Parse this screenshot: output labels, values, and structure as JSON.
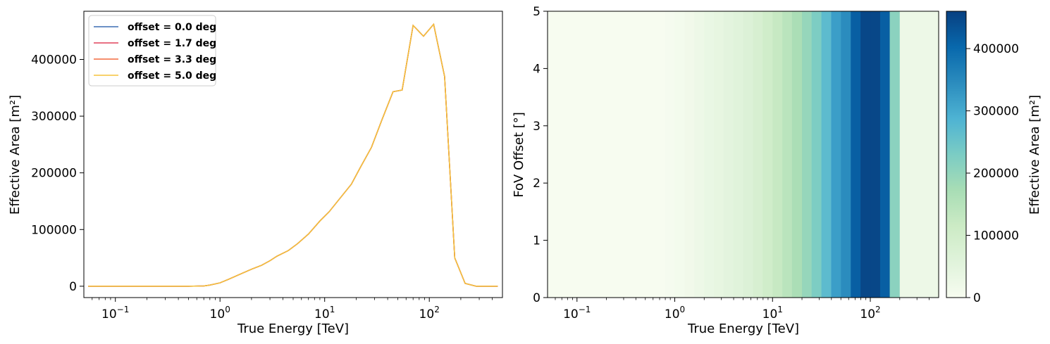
{
  "chart_data": [
    {
      "type": "line",
      "xlabel": "True Energy [TeV]",
      "ylabel": "Effective Area [m²]",
      "xscale": "log",
      "xlim": [
        0.05,
        500
      ],
      "ylim": [
        -20000,
        485000
      ],
      "x_ticks": [
        {
          "value": 0.1,
          "base": "10",
          "exp": "−1"
        },
        {
          "value": 1,
          "base": "10",
          "exp": "0"
        },
        {
          "value": 10,
          "base": "10",
          "exp": "1"
        },
        {
          "value": 100,
          "base": "10",
          "exp": "2"
        }
      ],
      "y_ticks": [
        {
          "value": 0,
          "label": "0"
        },
        {
          "value": 100000,
          "label": "100000"
        },
        {
          "value": 200000,
          "label": "200000"
        },
        {
          "value": 300000,
          "label": "300000"
        },
        {
          "value": 400000,
          "label": "400000"
        }
      ],
      "legend_position": "top-left",
      "x": [
        0.055,
        0.1,
        0.2,
        0.3,
        0.5,
        0.7,
        0.8,
        1.0,
        1.2,
        1.5,
        2.0,
        2.5,
        3.0,
        3.5,
        4.5,
        5.5,
        7.0,
        9.0,
        11,
        14,
        18,
        22,
        28,
        35,
        45,
        55,
        70,
        88,
        110,
        140,
        175,
        220,
        280,
        350,
        450
      ],
      "series": [
        {
          "name": "offset = 0.0 deg",
          "color": "#3b6db3",
          "values": [
            0,
            0,
            0,
            0,
            0,
            500,
            2000,
            6000,
            12000,
            20000,
            30000,
            37000,
            45000,
            53000,
            63000,
            75000,
            92000,
            115000,
            131000,
            155000,
            180000,
            210000,
            245000,
            292000,
            343000,
            346000,
            460000,
            441000,
            462000,
            370000,
            50000,
            5000,
            0,
            0,
            0
          ]
        },
        {
          "name": "offset = 1.7 deg",
          "color": "#e0425a",
          "values": [
            0,
            0,
            0,
            0,
            0,
            500,
            2000,
            6000,
            12000,
            20000,
            30000,
            37000,
            45000,
            53000,
            63000,
            75000,
            92000,
            115000,
            131000,
            155000,
            180000,
            210000,
            245000,
            292000,
            343000,
            346000,
            460000,
            441000,
            462000,
            370000,
            50000,
            5000,
            0,
            0,
            0
          ]
        },
        {
          "name": "offset = 3.3 deg",
          "color": "#f26a3e",
          "values": [
            0,
            0,
            0,
            0,
            0,
            500,
            2000,
            6000,
            12000,
            20000,
            30000,
            37000,
            45000,
            53000,
            63000,
            75000,
            92000,
            115000,
            131000,
            155000,
            180000,
            210000,
            245000,
            292000,
            343000,
            346000,
            460000,
            441000,
            462000,
            370000,
            50000,
            5000,
            0,
            0,
            0
          ]
        },
        {
          "name": "offset = 5.0 deg",
          "color": "#f5c33b",
          "values": [
            0,
            0,
            0,
            0,
            0,
            500,
            2000,
            6000,
            12000,
            20000,
            30000,
            37000,
            45000,
            53000,
            63000,
            75000,
            92000,
            115000,
            131000,
            155000,
            180000,
            210000,
            245000,
            292000,
            343000,
            346000,
            460000,
            441000,
            462000,
            370000,
            50000,
            5000,
            0,
            0,
            0
          ]
        }
      ]
    },
    {
      "type": "heatmap",
      "xlabel": "True Energy [TeV]",
      "ylabel": "FoV Offset [°]",
      "xscale": "log",
      "xlim": [
        0.05,
        500
      ],
      "ylim": [
        0,
        5
      ],
      "colormap": "GnBu",
      "colorbar_label": "Effective Area [m²]",
      "colorbar_range": [
        0,
        460000
      ],
      "x_ticks": [
        {
          "value": 0.1,
          "base": "10",
          "exp": "−1"
        },
        {
          "value": 1,
          "base": "10",
          "exp": "0"
        },
        {
          "value": 10,
          "base": "10",
          "exp": "1"
        },
        {
          "value": 100,
          "base": "10",
          "exp": "2"
        }
      ],
      "y_ticks": [
        {
          "value": 0,
          "label": "0"
        },
        {
          "value": 1,
          "label": "1"
        },
        {
          "value": 2,
          "label": "2"
        },
        {
          "value": 3,
          "label": "3"
        },
        {
          "value": 4,
          "label": "4"
        },
        {
          "value": 5,
          "label": "5"
        }
      ],
      "cbar_ticks": [
        {
          "value": 0,
          "label": "0"
        },
        {
          "value": 100000,
          "label": "100000"
        },
        {
          "value": 200000,
          "label": "200000"
        },
        {
          "value": 300000,
          "label": "300000"
        },
        {
          "value": 400000,
          "label": "400000"
        }
      ],
      "energy_bin_edges": [
        0.05,
        0.63,
        0.8,
        1.0,
        1.26,
        1.58,
        2.0,
        2.51,
        3.16,
        3.98,
        5.01,
        6.31,
        7.94,
        10.0,
        12.6,
        15.8,
        20.0,
        25.1,
        31.6,
        39.8,
        50.1,
        63.1,
        79.4,
        100,
        126,
        158,
        200,
        500
      ],
      "values": [
        0,
        1000,
        4000,
        9000,
        16000,
        25000,
        34000,
        41000,
        49000,
        58000,
        69000,
        84000,
        103000,
        123000,
        143000,
        168000,
        195000,
        228000,
        268000,
        318000,
        345000,
        415000,
        450000,
        450000,
        415000,
        210000,
        25000
      ]
    }
  ]
}
